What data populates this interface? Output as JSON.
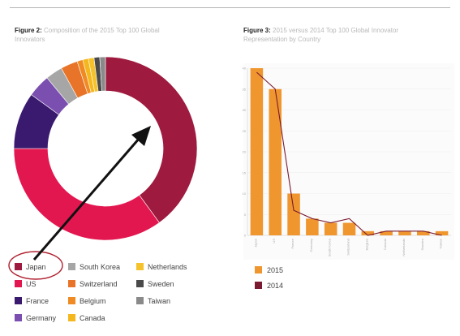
{
  "figure2": {
    "title_bold": "Figure 2:",
    "title_rest": "Composition of the 2015 Top 100 Global Innovators"
  },
  "figure3": {
    "title_bold": "Figure 3:",
    "title_rest": "2015 versus 2014 Top 100 Global Innovator Representation by Country"
  },
  "chart_data": [
    {
      "type": "pie",
      "variant": "donut",
      "title": "Figure 2: Composition of the 2015 Top 100 Global Innovators",
      "categories": [
        "Japan",
        "US",
        "France",
        "Germany",
        "South Korea",
        "Switzerland",
        "Belgium",
        "Canada",
        "Netherlands",
        "Sweden",
        "Taiwan"
      ],
      "values": [
        40,
        35,
        10,
        4,
        3,
        3,
        1,
        1,
        1,
        1,
        1
      ],
      "colors": [
        "#9e1a3e",
        "#e3174f",
        "#3a1a6e",
        "#7a4fb0",
        "#a6a6a6",
        "#e8742a",
        "#f08a23",
        "#f5b71e",
        "#f5c22b",
        "#4a4a4a",
        "#8a8a8a"
      ],
      "legend": {
        "placement": "bottom",
        "columns": [
          [
            "Japan",
            "US",
            "France",
            "Germany"
          ],
          [
            "South Korea",
            "Switzerland",
            "Belgium",
            "Canada"
          ],
          [
            "Netherlands",
            "Sweden",
            "Taiwan"
          ]
        ]
      },
      "annotations": [
        "Japan highlighted with red circle and arrow pointing to its slice"
      ]
    },
    {
      "type": "bar",
      "title": "Figure 3: 2015 versus 2014 Top 100 Global Innovator Representation by Country",
      "categories": [
        "Japan",
        "US",
        "France",
        "Germany",
        "South Korea",
        "Switzerland",
        "Belgium",
        "Canada",
        "Netherlands",
        "Sweden",
        "Taiwan"
      ],
      "series": [
        {
          "name": "2015",
          "type": "bar",
          "color": "#f0962e",
          "values": [
            40,
            35,
            10,
            4,
            3,
            3,
            1,
            1,
            1,
            1,
            1
          ]
        },
        {
          "name": "2014",
          "type": "line",
          "color": "#7a1a30",
          "values": [
            39,
            35,
            6,
            4,
            3,
            4,
            0,
            1,
            1,
            1,
            0
          ]
        }
      ],
      "y_ticks": [
        "0",
        "5",
        "10",
        "15",
        "20",
        "25",
        "30",
        "35",
        "40"
      ],
      "ylim": [
        0,
        40
      ],
      "legend": {
        "placement": "bottom-left"
      },
      "grid": true
    }
  ]
}
